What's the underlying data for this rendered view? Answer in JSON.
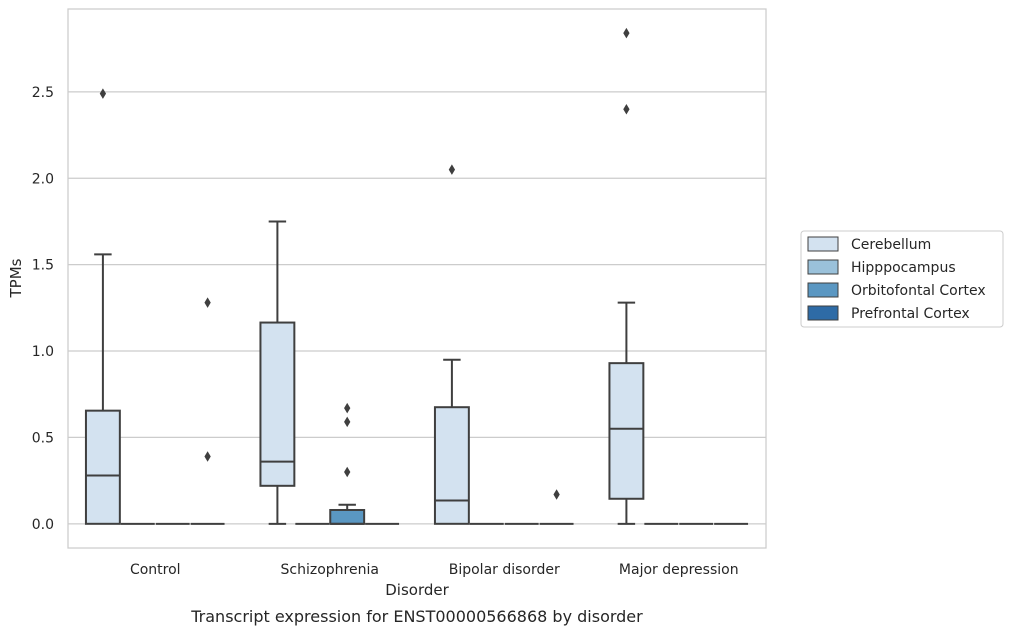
{
  "chart_data": {
    "type": "box",
    "caption": "Transcript expression for ENST00000566868 by disorder",
    "xlabel": "Disorder",
    "ylabel": "TPMs",
    "ylim": [
      -0.14,
      2.98
    ],
    "yticks": [
      0.0,
      0.5,
      1.0,
      1.5,
      2.0,
      2.5
    ],
    "ytick_labels": [
      "0.0",
      "0.5",
      "1.0",
      "1.5",
      "2.0",
      "2.5"
    ],
    "grid": "horizontal",
    "legend_position": "right",
    "categories": [
      "Control",
      "Schizophrenia",
      "Bipolar disorder",
      "Major depression"
    ],
    "series": [
      {
        "name": "Cerebellum",
        "color": "#d3e2f0",
        "boxes": [
          {
            "min": 0.0,
            "q1": 0.0,
            "median": 0.28,
            "q3": 0.655,
            "max": 1.56,
            "outliers": [
              2.49
            ]
          },
          {
            "min": 0.0,
            "q1": 0.22,
            "median": 0.36,
            "q3": 1.165,
            "max": 1.75,
            "outliers": []
          },
          {
            "min": 0.0,
            "q1": 0.0,
            "median": 0.135,
            "q3": 0.675,
            "max": 0.95,
            "outliers": [
              2.05
            ]
          },
          {
            "min": 0.0,
            "q1": 0.145,
            "median": 0.55,
            "q3": 0.93,
            "max": 1.28,
            "outliers": [
              2.4,
              2.84
            ]
          }
        ]
      },
      {
        "name": "Hipppocampus",
        "color": "#9ac1da",
        "boxes": [
          {
            "min": 0.0,
            "q1": 0.0,
            "median": 0.0,
            "q3": 0.0,
            "max": 0.0,
            "outliers": []
          },
          {
            "min": 0.0,
            "q1": 0.0,
            "median": 0.0,
            "q3": 0.0,
            "max": 0.0,
            "outliers": []
          },
          {
            "min": 0.0,
            "q1": 0.0,
            "median": 0.0,
            "q3": 0.0,
            "max": 0.0,
            "outliers": []
          },
          {
            "min": 0.0,
            "q1": 0.0,
            "median": 0.0,
            "q3": 0.0,
            "max": 0.0,
            "outliers": []
          }
        ]
      },
      {
        "name": "Orbitofontal Cortex",
        "color": "#5a97c2",
        "boxes": [
          {
            "min": 0.0,
            "q1": 0.0,
            "median": 0.0,
            "q3": 0.0,
            "max": 0.0,
            "outliers": []
          },
          {
            "min": 0.0,
            "q1": 0.0,
            "median": 0.0,
            "q3": 0.08,
            "max": 0.11,
            "outliers": [
              0.3,
              0.59,
              0.67
            ]
          },
          {
            "min": 0.0,
            "q1": 0.0,
            "median": 0.0,
            "q3": 0.0,
            "max": 0.0,
            "outliers": []
          },
          {
            "min": 0.0,
            "q1": 0.0,
            "median": 0.0,
            "q3": 0.0,
            "max": 0.0,
            "outliers": []
          }
        ]
      },
      {
        "name": "Prefrontal Cortex",
        "color": "#2e6ba6",
        "boxes": [
          {
            "min": 0.0,
            "q1": 0.0,
            "median": 0.0,
            "q3": 0.0,
            "max": 0.0,
            "outliers": [
              0.39,
              1.28
            ]
          },
          {
            "min": 0.0,
            "q1": 0.0,
            "median": 0.0,
            "q3": 0.0,
            "max": 0.0,
            "outliers": []
          },
          {
            "min": 0.0,
            "q1": 0.0,
            "median": 0.0,
            "q3": 0.0,
            "max": 0.0,
            "outliers": [
              0.17
            ]
          },
          {
            "min": 0.0,
            "q1": 0.0,
            "median": 0.0,
            "q3": 0.0,
            "max": 0.0,
            "outliers": []
          }
        ]
      }
    ]
  }
}
